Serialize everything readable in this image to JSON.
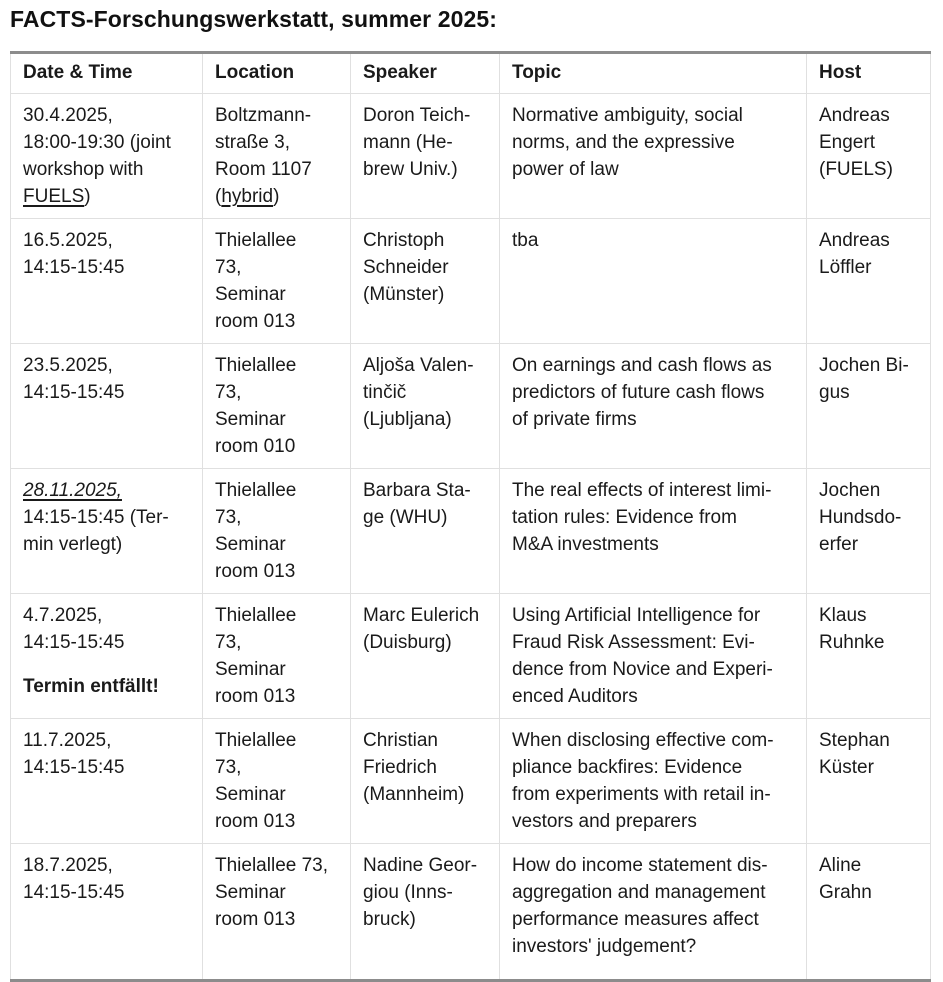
{
  "title": "FACTS-Forschungswerkstatt, summer 2025:",
  "colors": {
    "text": "#1a1a1a",
    "border_light": "#e0e0e0",
    "border_heavy": "#8c8c8c",
    "background": "#ffffff"
  },
  "table": {
    "columns": [
      {
        "label": "Date & Time"
      },
      {
        "label": "Location"
      },
      {
        "label": "Speaker"
      },
      {
        "label": "Topic"
      },
      {
        "label": "Host"
      }
    ],
    "rows": [
      {
        "date": [
          [
            {
              "t": "30.4.2025,\n18:00-19:30 (joint\nworkshop with\n"
            },
            {
              "t": "FUELS",
              "s": "link",
              "name": "fuels-link"
            },
            {
              "t": ")"
            }
          ]
        ],
        "location": [
          [
            {
              "t": "Boltzmann-\nstraße 3,\nRoom 1107\n("
            },
            {
              "t": "hybrid",
              "s": "link",
              "name": "hybrid-link"
            },
            {
              "t": ")"
            }
          ]
        ],
        "speaker": [
          [
            {
              "t": "Doron Teich-\nmann (He-\nbrew Univ.)"
            }
          ]
        ],
        "topic": [
          [
            {
              "t": "Normative ambiguity, social\nnorms, and the expressive\npower of law"
            }
          ]
        ],
        "host": [
          [
            {
              "t": "Andreas\nEngert\n(FUELS)"
            }
          ]
        ]
      },
      {
        "date": [
          [
            {
              "t": "16.5.2025,\n14:15-15:45"
            }
          ]
        ],
        "location": [
          [
            {
              "t": "Thielallee\n73,\nSeminar\nroom 013"
            }
          ]
        ],
        "speaker": [
          [
            {
              "t": "Christoph\nSchneider\n(Münster)"
            }
          ]
        ],
        "topic": [
          [
            {
              "t": "tba"
            }
          ]
        ],
        "host": [
          [
            {
              "t": "Andreas\nLöffler"
            }
          ]
        ]
      },
      {
        "date": [
          [
            {
              "t": "23.5.2025,\n14:15-15:45"
            }
          ]
        ],
        "location": [
          [
            {
              "t": "Thielallee\n73,\nSeminar\nroom 010"
            }
          ]
        ],
        "speaker": [
          [
            {
              "t": "Aljoša Valen-\ntinčič\n(Ljubljana)"
            }
          ]
        ],
        "topic": [
          [
            {
              "t": "On earnings and cash flows as\npredictors of future cash flows\nof private firms"
            }
          ]
        ],
        "host": [
          [
            {
              "t": "Jochen Bi-\ngus"
            }
          ]
        ]
      },
      {
        "date": [
          [
            {
              "t": "28.11.2025,",
              "s": "link-italic",
              "name": "moved-date-link"
            },
            {
              "t": "\n14:15-15:45 (Ter-\nmin verlegt)"
            }
          ]
        ],
        "location": [
          [
            {
              "t": "Thielallee\n73,\nSeminar\nroom 013"
            }
          ]
        ],
        "speaker": [
          [
            {
              "t": "Barbara Sta-\nge (WHU)"
            }
          ]
        ],
        "topic": [
          [
            {
              "t": "The real effects of interest limi-\ntation rules: Evidence from\nM&A investments"
            }
          ]
        ],
        "host": [
          [
            {
              "t": "Jochen\nHundsdo-\nerfer"
            }
          ]
        ]
      },
      {
        "date": [
          [
            {
              "t": "4.7.2025,\n14:15-15:45"
            }
          ],
          [
            {
              "t": "Termin entfällt!",
              "s": "bold",
              "name": "cancelled-note"
            }
          ]
        ],
        "location": [
          [
            {
              "t": "Thielallee\n73,\nSeminar\nroom 013"
            }
          ]
        ],
        "speaker": [
          [
            {
              "t": "Marc Eulerich\n(Duisburg)"
            }
          ]
        ],
        "topic": [
          [
            {
              "t": "Using Artificial Intelligence for\nFraud Risk Assessment: Evi-\ndence from Novice and Experi-\nenced Auditors"
            }
          ]
        ],
        "host": [
          [
            {
              "t": "Klaus\nRuhnke"
            }
          ]
        ]
      },
      {
        "date": [
          [
            {
              "t": "11.7.2025,\n14:15-15:45"
            }
          ]
        ],
        "location": [
          [
            {
              "t": "Thielallee\n73,\nSeminar\nroom 013"
            }
          ]
        ],
        "speaker": [
          [
            {
              "t": "Christian\nFriedrich\n(Mannheim)"
            }
          ]
        ],
        "topic": [
          [
            {
              "t": "When disclosing effective com-\npliance backfires: Evidence\nfrom experiments with retail in-\nvestors and preparers"
            }
          ]
        ],
        "host": [
          [
            {
              "t": "Stephan\nKüster"
            }
          ]
        ]
      },
      {
        "date": [
          [
            {
              "t": "18.7.2025,\n14:15-15:45"
            }
          ]
        ],
        "location": [
          [
            {
              "t": "Thielallee 73,\nSeminar\nroom 013"
            }
          ]
        ],
        "speaker": [
          [
            {
              "t": "Nadine Geor-\ngiou (Inns-\nbruck)"
            }
          ]
        ],
        "topic": [
          [
            {
              "t": "How do income statement dis-\naggregation and management\nperformance measures affect\ninvestors' judgement?"
            }
          ]
        ],
        "host": [
          [
            {
              "t": "Aline\nGrahn"
            }
          ]
        ]
      }
    ]
  }
}
